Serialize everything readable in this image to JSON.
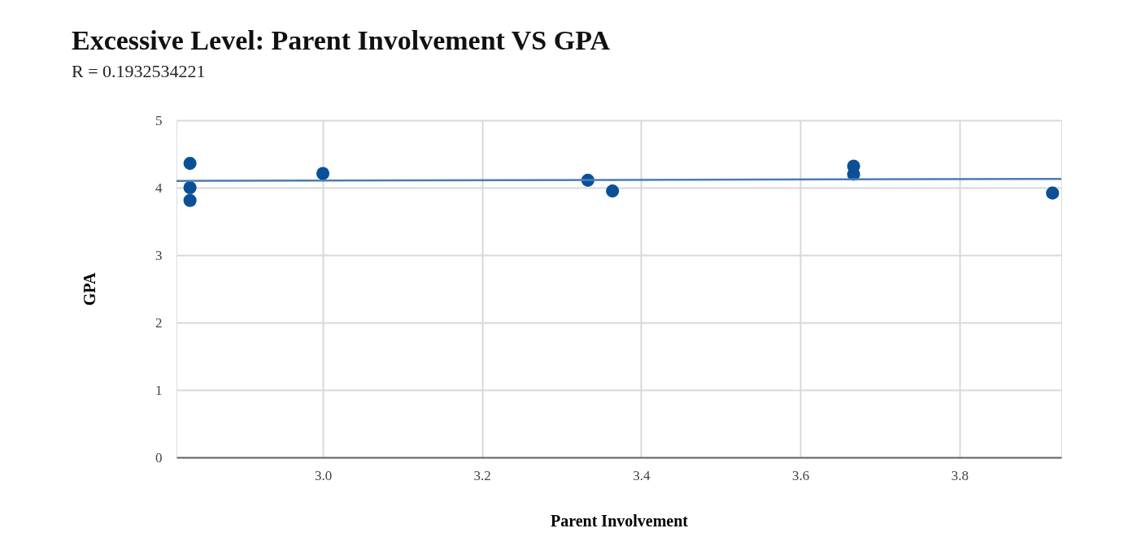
{
  "chart_data": {
    "type": "scatter",
    "title": "Excessive Level: Parent Involvement VS GPA",
    "subtitle": "R = 0.1932534221",
    "xlabel": "Parent Involvement",
    "ylabel": "GPA",
    "xlim": [
      2.816,
      3.928
    ],
    "ylim": [
      0,
      5
    ],
    "xticks": [
      {
        "value": 3.0,
        "label": "3.0"
      },
      {
        "value": 3.2,
        "label": "3.2"
      },
      {
        "value": 3.4,
        "label": "3.4"
      },
      {
        "value": 3.6,
        "label": "3.6"
      },
      {
        "value": 3.8,
        "label": "3.8"
      }
    ],
    "yticks": [
      0,
      1,
      2,
      3,
      4,
      5
    ],
    "grid": true,
    "series": [
      {
        "marker": "circle",
        "color": "#0b5096",
        "x": [
          2.833,
          2.833,
          2.833,
          3.0,
          3.333,
          3.364,
          3.667,
          3.667,
          3.917
        ],
        "values": [
          4.36,
          4.0,
          3.81,
          4.21,
          4.11,
          3.95,
          4.32,
          4.2,
          3.92
        ]
      },
      {
        "type": "line",
        "color": "#4a7db3",
        "x": [
          2.816,
          3.928
        ],
        "values": [
          4.1,
          4.13
        ]
      }
    ]
  }
}
